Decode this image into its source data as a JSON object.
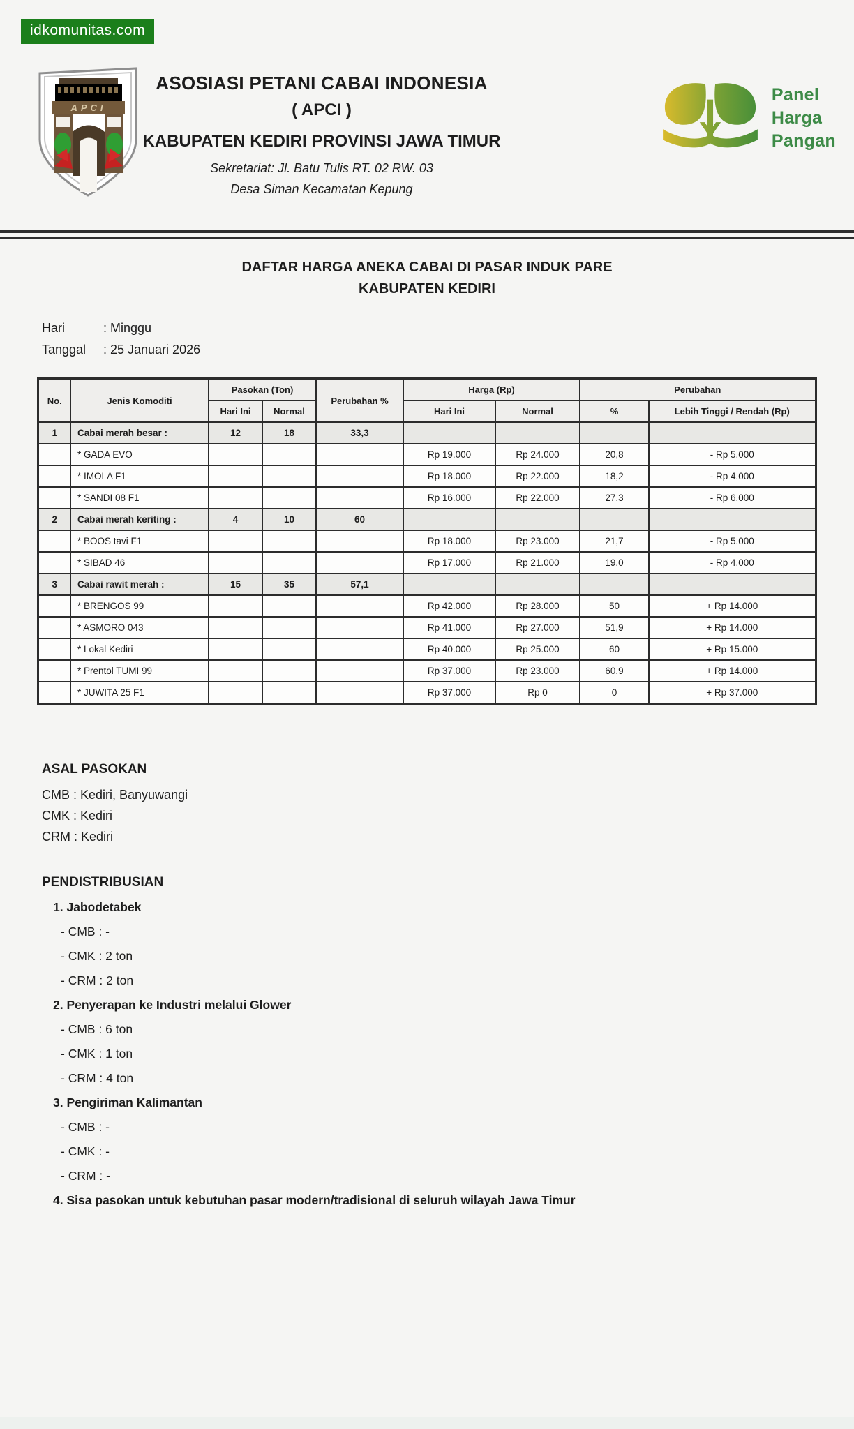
{
  "watermark": {
    "text": "idkomunitas.com",
    "bg_color": "#1b7f1b",
    "text_color": "#ffffff"
  },
  "header": {
    "org_line1": "ASOSIASI PETANI CABAI INDONESIA",
    "org_line2": "( APCI )",
    "org_line3": "KABUPATEN KEDIRI PROVINSI JAWA TIMUR",
    "secretariat1": "Sekretariat: Jl. Batu Tulis RT. 02 RW. 03",
    "secretariat2": "Desa Siman Kecamatan Kepung",
    "shield_letters": "APCI",
    "panel_logo": {
      "line1": "Panel",
      "line2": "Harga",
      "line3": "Pangan",
      "text_color": "#3d8b47",
      "gradient_from": "#e5be2b",
      "gradient_to": "#3f8c3a"
    }
  },
  "title": {
    "line1": "DAFTAR HARGA ANEKA CABAI DI PASAR INDUK PARE",
    "line2": "KABUPATEN KEDIRI"
  },
  "meta": {
    "rows": [
      {
        "label": "Hari",
        "value": ": Minggu"
      },
      {
        "label": "Tanggal",
        "value": ": 25 Januari 2026"
      }
    ]
  },
  "table": {
    "group_headers": {
      "no": "No.",
      "jenis": "Jenis Komoditi",
      "pasokan": "Pasokan (Ton)",
      "perubahan_pct": "Perubahan %",
      "harga": "Harga (Rp)",
      "perubahan": "Perubahan"
    },
    "sub_headers": {
      "pasokan_hari_ini": "Hari Ini",
      "pasokan_normal": "Normal",
      "harga_hari_ini": "Hari Ini",
      "harga_normal": "Normal",
      "pct": "%",
      "selisih": "Lebih Tinggi / Rendah (Rp)"
    },
    "rows": [
      {
        "type": "category",
        "no": "1",
        "name": "Cabai merah besar :",
        "p_hari": "12",
        "p_normal": "18",
        "p_pct": "33,3",
        "h_hari": "",
        "h_normal": "",
        "pct": "",
        "diff": ""
      },
      {
        "type": "item",
        "no": "",
        "name": "* GADA EVO",
        "p_hari": "",
        "p_normal": "",
        "p_pct": "",
        "h_hari": "Rp 19.000",
        "h_normal": "Rp 24.000",
        "pct": "20,8",
        "diff": "- Rp 5.000"
      },
      {
        "type": "item",
        "no": "",
        "name": "* IMOLA F1",
        "p_hari": "",
        "p_normal": "",
        "p_pct": "",
        "h_hari": "Rp 18.000",
        "h_normal": "Rp 22.000",
        "pct": "18,2",
        "diff": "- Rp 4.000"
      },
      {
        "type": "item",
        "no": "",
        "name": "* SANDI 08 F1",
        "p_hari": "",
        "p_normal": "",
        "p_pct": "",
        "h_hari": "Rp 16.000",
        "h_normal": "Rp 22.000",
        "pct": "27,3",
        "diff": "- Rp 6.000"
      },
      {
        "type": "category",
        "no": "2",
        "name": "Cabai merah keriting :",
        "p_hari": "4",
        "p_normal": "10",
        "p_pct": "60",
        "h_hari": "",
        "h_normal": "",
        "pct": "",
        "diff": ""
      },
      {
        "type": "item",
        "no": "",
        "name": "* BOOS tavi F1",
        "p_hari": "",
        "p_normal": "",
        "p_pct": "",
        "h_hari": "Rp 18.000",
        "h_normal": "Rp 23.000",
        "pct": "21,7",
        "diff": "- Rp 5.000"
      },
      {
        "type": "item",
        "no": "",
        "name": "* SIBAD 46",
        "p_hari": "",
        "p_normal": "",
        "p_pct": "",
        "h_hari": "Rp 17.000",
        "h_normal": "Rp 21.000",
        "pct": "19,0",
        "diff": "- Rp 4.000"
      },
      {
        "type": "category",
        "no": "3",
        "name": "Cabai rawit merah :",
        "p_hari": "15",
        "p_normal": "35",
        "p_pct": "57,1",
        "h_hari": "",
        "h_normal": "",
        "pct": "",
        "diff": ""
      },
      {
        "type": "item",
        "no": "",
        "name": "* BRENGOS 99",
        "p_hari": "",
        "p_normal": "",
        "p_pct": "",
        "h_hari": "Rp 42.000",
        "h_normal": "Rp 28.000",
        "pct": "50",
        "diff": "+ Rp 14.000"
      },
      {
        "type": "item",
        "no": "",
        "name": "* ASMORO 043",
        "p_hari": "",
        "p_normal": "",
        "p_pct": "",
        "h_hari": "Rp 41.000",
        "h_normal": "Rp 27.000",
        "pct": "51,9",
        "diff": "+ Rp 14.000"
      },
      {
        "type": "item",
        "no": "",
        "name": "* Lokal Kediri",
        "p_hari": "",
        "p_normal": "",
        "p_pct": "",
        "h_hari": "Rp 40.000",
        "h_normal": "Rp 25.000",
        "pct": "60",
        "diff": "+ Rp 15.000"
      },
      {
        "type": "item",
        "no": "",
        "name": "* Prentol TUMI 99",
        "p_hari": "",
        "p_normal": "",
        "p_pct": "",
        "h_hari": "Rp 37.000",
        "h_normal": "Rp 23.000",
        "pct": "60,9",
        "diff": "+ Rp 14.000"
      },
      {
        "type": "item",
        "no": "",
        "name": "* JUWITA 25 F1",
        "p_hari": "",
        "p_normal": "",
        "p_pct": "",
        "h_hari": "Rp 37.000",
        "h_normal": "Rp 0",
        "pct": "0",
        "diff": "+ Rp 37.000"
      }
    ]
  },
  "asal_pasokan": {
    "heading": "ASAL PASOKAN",
    "lines": [
      "CMB : Kediri, Banyuwangi",
      "CMK : Kediri",
      "CRM : Kediri"
    ]
  },
  "pendistribusian": {
    "heading": "PENDISTRIBUSIAN",
    "items": [
      {
        "title": "1. Jabodetabek",
        "subs": [
          "- CMB : -",
          "- CMK : 2 ton",
          "- CRM : 2 ton"
        ]
      },
      {
        "title": "2. Penyerapan ke Industri melalui Glower",
        "subs": [
          "- CMB : 6 ton",
          "- CMK : 1 ton",
          "- CRM : 4 ton"
        ]
      },
      {
        "title": "3. Pengiriman Kalimantan",
        "subs": [
          "- CMB : -",
          "- CMK : -",
          "- CRM : -"
        ]
      },
      {
        "title": "4. Sisa pasokan untuk kebutuhan pasar modern/tradisional di seluruh wilayah Jawa Timur",
        "subs": []
      }
    ]
  }
}
